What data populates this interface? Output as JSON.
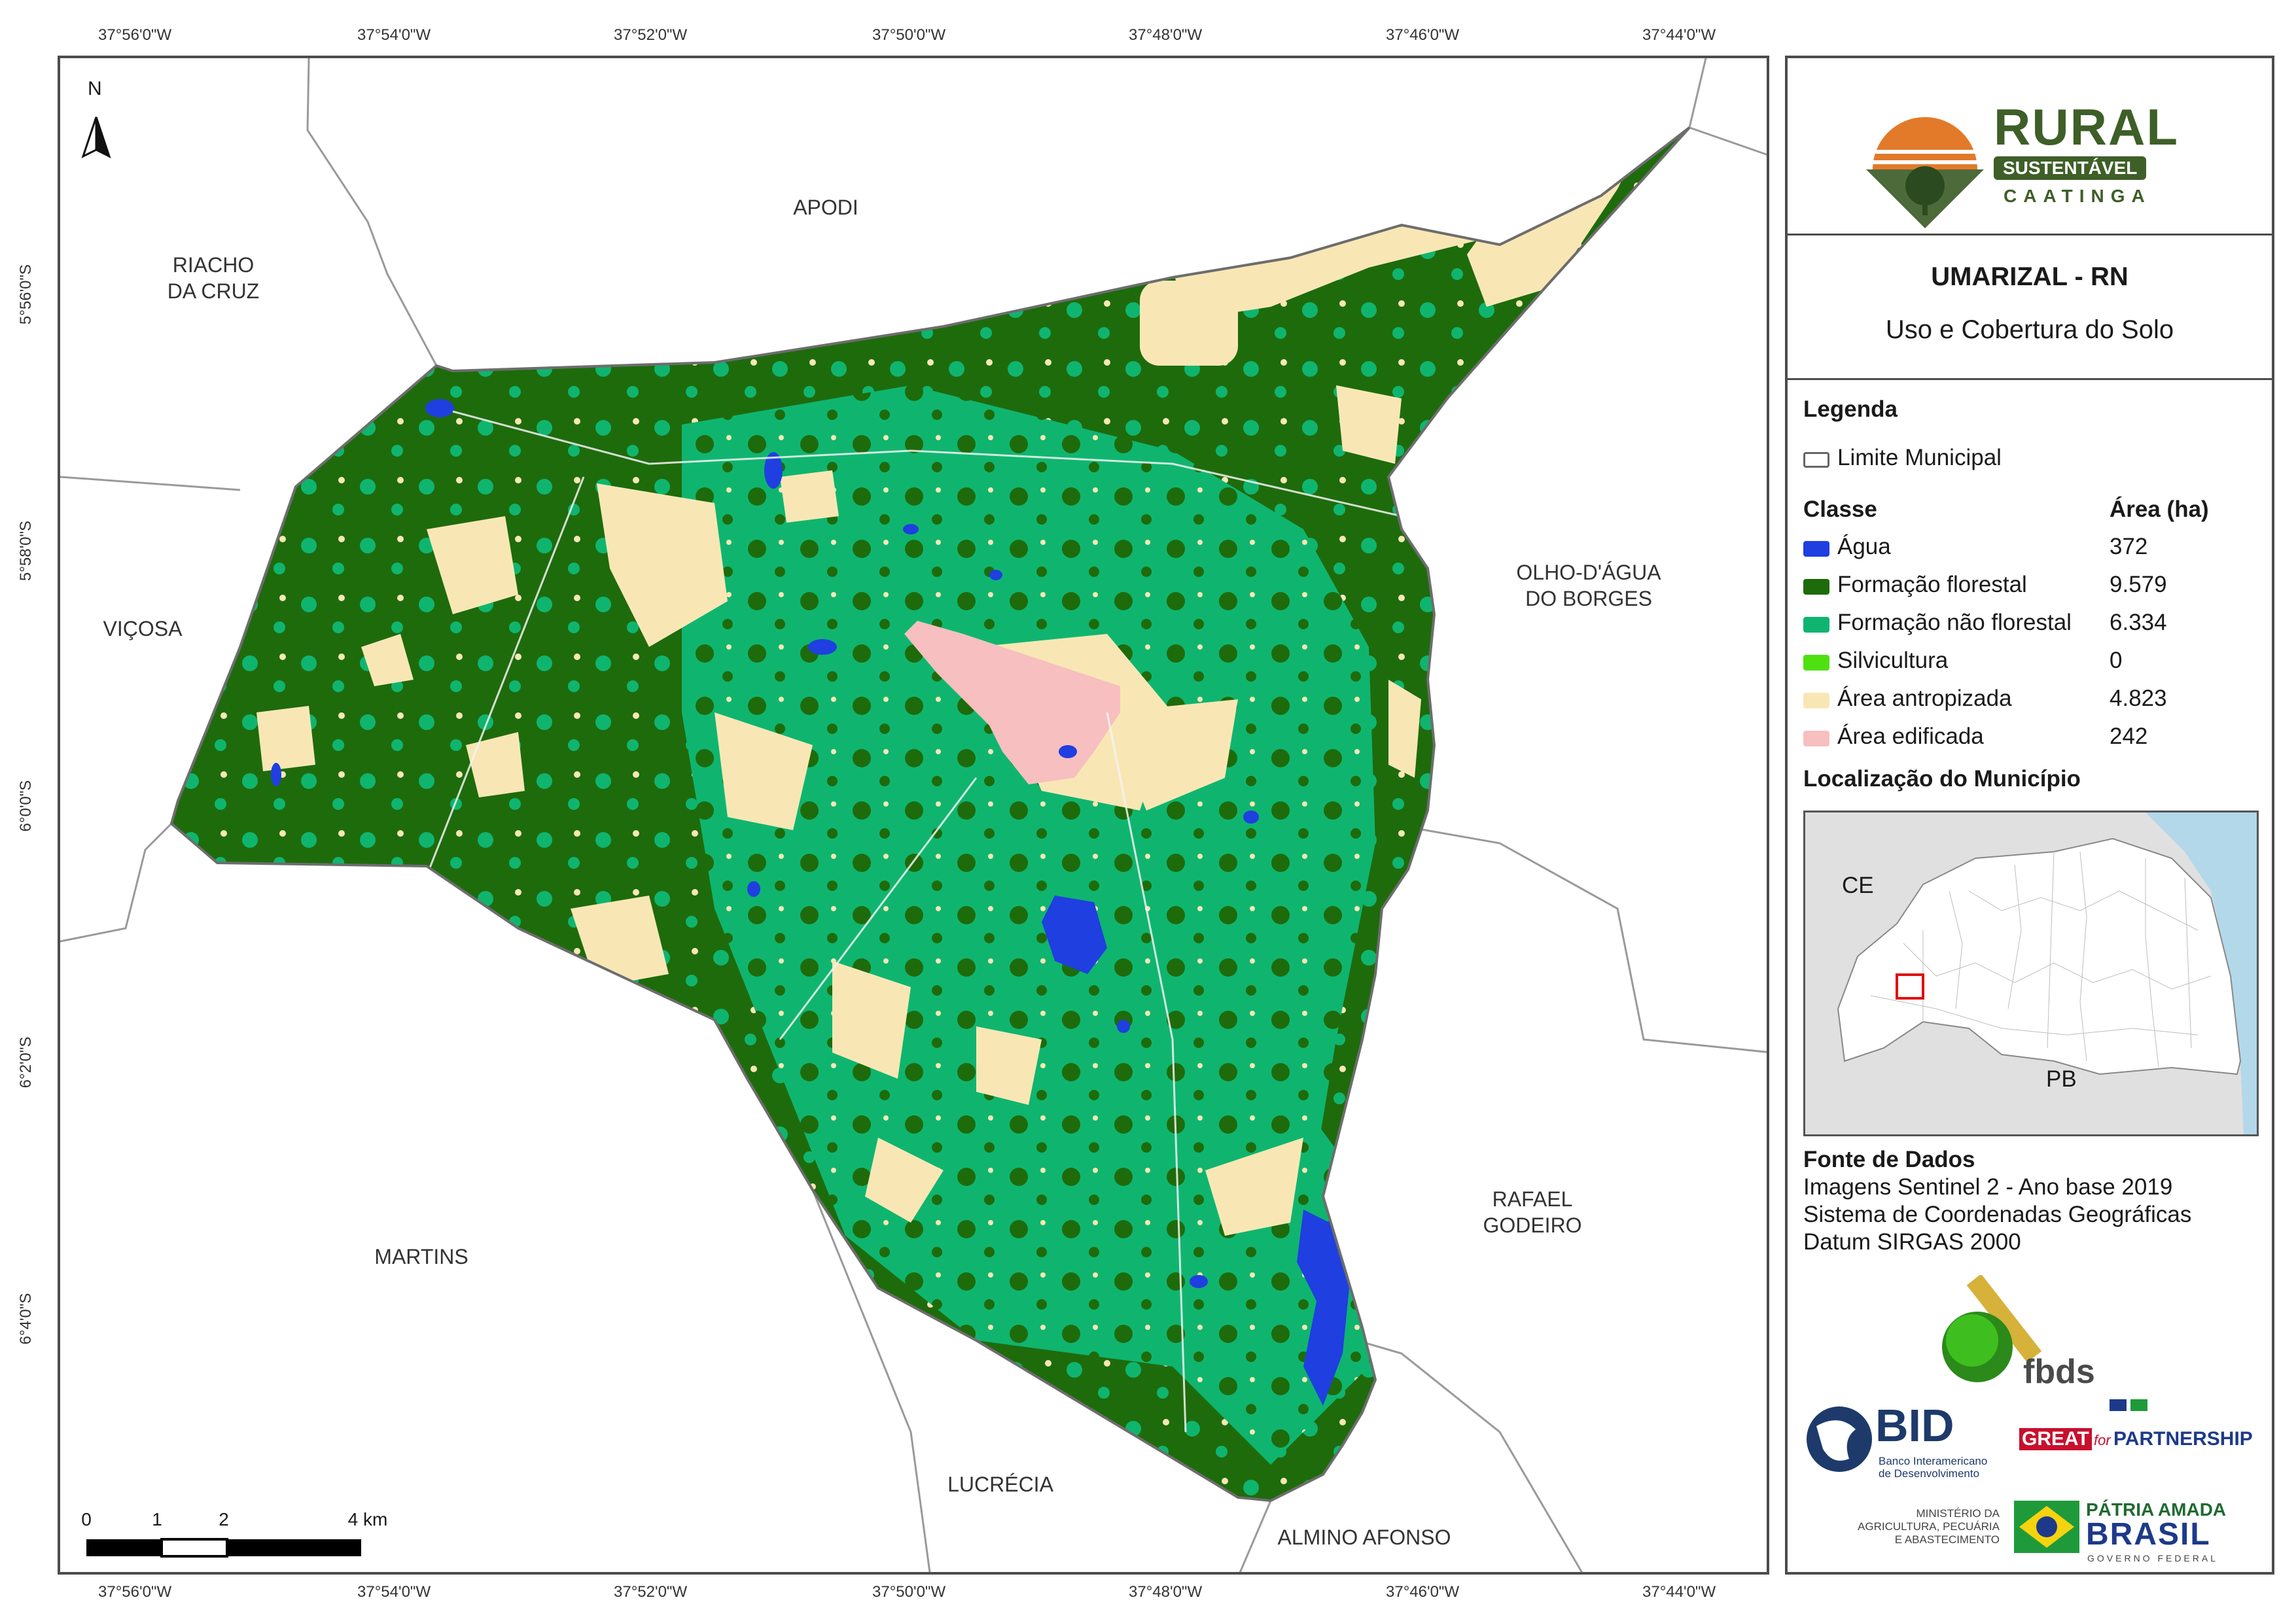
{
  "map": {
    "north_label": "N",
    "lon_labels": [
      "37°56'0\"W",
      "37°54'0\"W",
      "37°52'0\"W",
      "37°50'0\"W",
      "37°48'0\"W",
      "37°46'0\"W",
      "37°44'0\"W"
    ],
    "lat_labels": [
      "5°56'0\"S",
      "5°58'0\"S",
      "6°0'0\"S",
      "6°2'0\"S",
      "6°4'0\"S"
    ],
    "municipalities": {
      "apodi": "APODI",
      "riacho": "RIACHO\nDA CRUZ",
      "vicosa": "VIÇOSA",
      "olho": "OLHO-D'ÁGUA\nDO BORGES",
      "rafael": "RAFAEL\nGODEIRO",
      "martins": "MARTINS",
      "lucrecia": "LUCRÉCIA",
      "almino": "ALMINO AFONSO"
    },
    "scale": {
      "ticks": [
        "0",
        "1",
        "2",
        "4 km"
      ]
    }
  },
  "panel": {
    "logo": {
      "word1": "RURAL",
      "word2": "SUSTENTÁVEL",
      "word3": "CAATINGA"
    },
    "title": "UMARIZAL - RN",
    "subtitle": "Uso e Cobertura do Solo",
    "legend_heading": "Legenda",
    "limit_label": "Limite Municipal",
    "class_header": "Classe",
    "area_header": "Área (ha)",
    "classes": [
      {
        "name": "Água",
        "area": "372",
        "color": "#1f3fe0"
      },
      {
        "name": "Formação florestal",
        "area": "9.579",
        "color": "#1e6b0c"
      },
      {
        "name": "Formação não florestal",
        "area": "6.334",
        "color": "#0fb56f"
      },
      {
        "name": "Silvicultura",
        "area": "0",
        "color": "#4fe012"
      },
      {
        "name": "Área antropizada",
        "area": "4.823",
        "color": "#f8e7b5"
      },
      {
        "name": "Área edificada",
        "area": "242",
        "color": "#f7bfbf"
      }
    ],
    "location_heading": "Localização do Município",
    "inset": {
      "ce": "CE",
      "pb": "PB"
    },
    "source_heading": "Fonte de Dados",
    "source_lines": [
      "Imagens Sentinel 2 - Ano base 2019",
      "Sistema de Coordenadas Geográficas",
      "Datum SIRGAS 2000"
    ],
    "partners": {
      "fbds": "fbds",
      "bid": "BID",
      "bid_sub1": "Banco Interamericano",
      "bid_sub2": "de Desenvolvimento",
      "great": "GREAT",
      "great_for": "for",
      "partnership": "PARTNERSHIP",
      "ministerio1": "MINISTÉRIO DA",
      "ministerio2": "AGRICULTURA, PECUÁRIA",
      "ministerio3": "E ABASTECIMENTO",
      "patria": "PÁTRIA AMADA",
      "brasil": "BRASIL",
      "governo": "GOVERNO FEDERAL"
    }
  }
}
